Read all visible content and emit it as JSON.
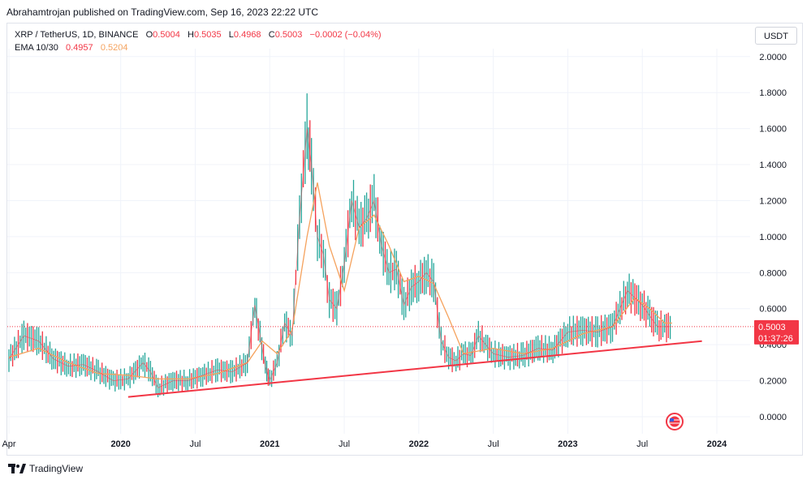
{
  "header": {
    "published": "Abrahamtrojan published on TradingView.com, Sep 16, 2023 22:22 UTC"
  },
  "legend": {
    "symbol": "XRP / TetherUS, 1D, BINANCE",
    "o_label": "O",
    "o_value": "0.5004",
    "h_label": "H",
    "h_value": "0.5035",
    "l_label": "L",
    "l_value": "0.4968",
    "c_label": "C",
    "c_value": "0.5003",
    "change": "−0.0002 (−0.04%)",
    "ema_label": "EMA 10/30",
    "ema_fast": "0.4957",
    "ema_slow": "0.5204"
  },
  "currency_button": "USDT",
  "price_tag": {
    "price": "0.5003",
    "countdown": "01:37:26"
  },
  "footer": {
    "brand": "TradingView"
  },
  "colors": {
    "up": "#26a69a",
    "down": "#f23645",
    "ema_fast": "#f23645",
    "ema_slow": "#f5a25d",
    "trendline": "#f23645",
    "grid": "#f0f3fa"
  },
  "chart_data": {
    "type": "line",
    "title": "XRP / TetherUS, 1D, BINANCE",
    "y_axis_ticks": [
      "0.0000",
      "0.2000",
      "0.4000",
      "0.6000",
      "0.8000",
      "1.0000",
      "1.2000",
      "1.4000",
      "1.6000",
      "1.8000",
      "2.0000"
    ],
    "x_axis_ticks": [
      "Apr",
      "2020",
      "Jul",
      "2021",
      "Jul",
      "2022",
      "Jul",
      "2023",
      "Jul",
      "2024"
    ],
    "ylim": [
      -0.05,
      2.05
    ],
    "grid": true,
    "series": [
      {
        "name": "XRP / TetherUS",
        "x": [
          2019.25,
          2019.35,
          2019.45,
          2019.55,
          2019.65,
          2019.75,
          2019.85,
          2019.95,
          2020.05,
          2020.15,
          2020.2,
          2020.25,
          2020.35,
          2020.45,
          2020.55,
          2020.65,
          2020.75,
          2020.85,
          2020.9,
          2020.97,
          2021.0,
          2021.05,
          2021.1,
          2021.15,
          2021.2,
          2021.25,
          2021.28,
          2021.32,
          2021.36,
          2021.4,
          2021.45,
          2021.5,
          2021.55,
          2021.6,
          2021.65,
          2021.7,
          2021.75,
          2021.8,
          2021.85,
          2021.9,
          2021.95,
          2022.0,
          2022.05,
          2022.1,
          2022.15,
          2022.2,
          2022.25,
          2022.3,
          2022.35,
          2022.4,
          2022.45,
          2022.5,
          2022.6,
          2022.7,
          2022.8,
          2022.9,
          2023.0,
          2023.1,
          2023.2,
          2023.3,
          2023.4,
          2023.5,
          2023.55,
          2023.6,
          2023.65,
          2023.7
        ],
        "values": [
          0.32,
          0.45,
          0.42,
          0.32,
          0.28,
          0.29,
          0.25,
          0.2,
          0.21,
          0.3,
          0.25,
          0.16,
          0.2,
          0.2,
          0.23,
          0.26,
          0.25,
          0.3,
          0.62,
          0.28,
          0.2,
          0.3,
          0.52,
          0.45,
          1.1,
          1.6,
          1.4,
          1.0,
          0.9,
          0.65,
          0.6,
          0.85,
          1.2,
          1.05,
          1.1,
          1.2,
          0.95,
          0.8,
          0.82,
          0.62,
          0.72,
          0.75,
          0.8,
          0.75,
          0.42,
          0.33,
          0.31,
          0.35,
          0.34,
          0.45,
          0.4,
          0.35,
          0.33,
          0.34,
          0.38,
          0.37,
          0.47,
          0.48,
          0.47,
          0.5,
          0.7,
          0.62,
          0.56,
          0.5,
          0.5,
          0.5
        ]
      },
      {
        "name": "EMA 10/30",
        "x": [
          2019.25,
          2019.45,
          2019.65,
          2019.85,
          2020.05,
          2020.25,
          2020.45,
          2020.65,
          2020.85,
          2020.95,
          2021.05,
          2021.15,
          2021.25,
          2021.32,
          2021.4,
          2021.5,
          2021.6,
          2021.7,
          2021.8,
          2021.9,
          2022.0,
          2022.1,
          2022.2,
          2022.3,
          2022.5,
          2022.7,
          2022.9,
          2023.1,
          2023.3,
          2023.45,
          2023.55,
          2023.65,
          2023.7
        ],
        "values": [
          0.33,
          0.38,
          0.3,
          0.24,
          0.23,
          0.21,
          0.21,
          0.24,
          0.3,
          0.42,
          0.35,
          0.48,
          1.0,
          1.3,
          0.95,
          0.7,
          1.05,
          1.12,
          0.95,
          0.75,
          0.78,
          0.74,
          0.55,
          0.35,
          0.38,
          0.35,
          0.38,
          0.46,
          0.5,
          0.66,
          0.6,
          0.52,
          0.52
        ]
      }
    ],
    "trendline": {
      "x": [
        2020.05,
        2023.9
      ],
      "values": [
        0.11,
        0.42
      ]
    }
  }
}
